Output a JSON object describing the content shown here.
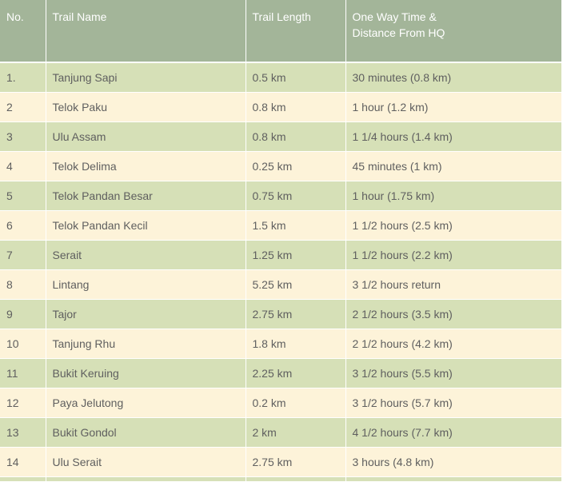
{
  "table": {
    "headers": {
      "no": "No.",
      "trail_name": "Trail Name",
      "trail_length": "Trail Length",
      "time_line1": "One Way Time &",
      "time_line2": "Distance From HQ"
    },
    "rows": [
      {
        "no": "1.",
        "name": "Tanjung Sapi",
        "length": "0.5 km",
        "time": "30 minutes (0.8 km)"
      },
      {
        "no": "2",
        "name": "Telok Paku",
        "length": "0.8 km",
        "time": "1 hour (1.2 km)"
      },
      {
        "no": "3",
        "name": "Ulu Assam",
        "length": "0.8 km",
        "time": "1 1/4 hours (1.4 km)"
      },
      {
        "no": "4",
        "name": "Telok Delima",
        "length": "0.25 km",
        "time": "45 minutes (1 km)"
      },
      {
        "no": "5",
        "name": "Telok Pandan Besar",
        "length": "0.75 km",
        "time": "1 hour (1.75 km)"
      },
      {
        "no": "6",
        "name": "Telok Pandan Kecil",
        "length": "1.5 km",
        "time": "1 1/2 hours (2.5 km)"
      },
      {
        "no": "7",
        "name": "Serait",
        "length": "1.25 km",
        "time": "1 1/2 hours (2.2 km)"
      },
      {
        "no": "8",
        "name": "Lintang",
        "length": "5.25 km",
        "time": "3 1/2 hours return"
      },
      {
        "no": "9",
        "name": "Tajor",
        "length": "2.75 km",
        "time": "2 1/2 hours (3.5 km)"
      },
      {
        "no": "10",
        "name": "Tanjung Rhu",
        "length": "1.8 km",
        "time": "2 1/2 hours (4.2 km)"
      },
      {
        "no": "11",
        "name": "Bukit Keruing",
        "length": "2.25 km",
        "time": "3 1/2 hours (5.5 km)"
      },
      {
        "no": "12",
        "name": "Paya Jelutong",
        "length": "0.2 km",
        "time": "3 1/2 hours (5.7 km)"
      },
      {
        "no": "13",
        "name": "Bukit Gondol",
        "length": "2 km",
        "time": "4 1/2 hours (7.7 km)"
      },
      {
        "no": "14",
        "name": "Ulu Serait",
        "length": "2.75 km",
        "time": "3 hours (4.8 km)"
      }
    ]
  },
  "colors": {
    "header_bg": "#a3b599",
    "row_odd_bg": "#d6e0b7",
    "row_even_bg": "#fdf3d9",
    "text": "#5f5f5f",
    "header_text": "#ffffff"
  }
}
